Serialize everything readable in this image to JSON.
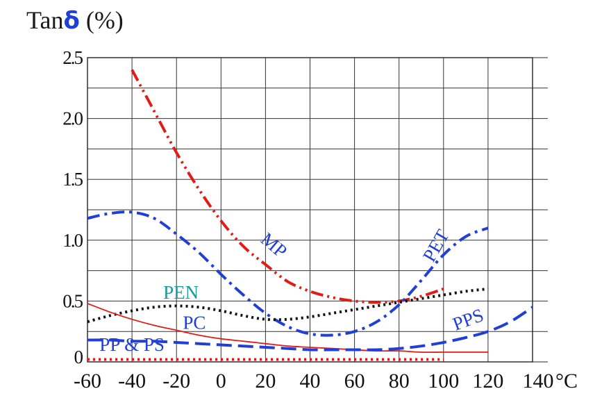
{
  "chart_data": {
    "type": "line",
    "title": {
      "prefix": "Tan",
      "symbol": "δ",
      "suffix": "(%)"
    },
    "xlabel": "°C",
    "ylabel": "",
    "xlim": [
      -60,
      140
    ],
    "ylim": [
      0,
      2.5
    ],
    "x_ticks": [
      -60,
      -40,
      -20,
      0,
      20,
      40,
      60,
      80,
      100,
      120,
      140
    ],
    "x_tick_labels": [
      "-60",
      "-40",
      "-20",
      "0",
      "20",
      "40",
      "60",
      "80",
      "100",
      "120",
      "140"
    ],
    "y_ticks": [
      0,
      0.5,
      1.0,
      1.5,
      2.0,
      2.5
    ],
    "y_tick_labels": [
      "0",
      "0.5",
      "1.0",
      "1.5",
      "2.0",
      "2.5"
    ],
    "grid": true,
    "series": [
      {
        "name": "MP",
        "color": "#e21b14",
        "style": "dash-dot-dot",
        "x": [
          -40,
          -30,
          -20,
          -10,
          0,
          10,
          20,
          30,
          40,
          50,
          60,
          70,
          80,
          90,
          100
        ],
        "y": [
          2.4,
          2.06,
          1.72,
          1.42,
          1.16,
          0.95,
          0.8,
          0.66,
          0.58,
          0.53,
          0.5,
          0.49,
          0.5,
          0.54,
          0.6
        ]
      },
      {
        "name": "PET",
        "color": "#1f3fd6",
        "style": "dash-dot",
        "x": [
          -60,
          -50,
          -40,
          -30,
          -20,
          -10,
          0,
          10,
          20,
          30,
          40,
          50,
          60,
          70,
          80,
          90,
          100,
          110,
          120
        ],
        "y": [
          1.18,
          1.22,
          1.23,
          1.18,
          1.05,
          0.9,
          0.72,
          0.55,
          0.4,
          0.29,
          0.23,
          0.22,
          0.25,
          0.33,
          0.47,
          0.67,
          0.88,
          1.03,
          1.1
        ]
      },
      {
        "name": "PEN",
        "color": "#111111",
        "style": "dotted",
        "x": [
          -60,
          -50,
          -40,
          -30,
          -20,
          -10,
          0,
          10,
          20,
          30,
          40,
          50,
          60,
          70,
          80,
          90,
          100,
          110,
          120
        ],
        "y": [
          0.33,
          0.38,
          0.42,
          0.45,
          0.46,
          0.45,
          0.42,
          0.38,
          0.35,
          0.35,
          0.37,
          0.4,
          0.43,
          0.46,
          0.49,
          0.52,
          0.55,
          0.58,
          0.6
        ]
      },
      {
        "name": "PC",
        "color": "#e21b14",
        "style": "solid",
        "x": [
          -60,
          -50,
          -40,
          -30,
          -20,
          -10,
          0,
          10,
          20,
          30,
          40,
          50,
          60,
          70,
          80,
          90,
          100,
          110,
          120
        ],
        "y": [
          0.48,
          0.41,
          0.35,
          0.3,
          0.26,
          0.22,
          0.19,
          0.17,
          0.15,
          0.13,
          0.12,
          0.11,
          0.1,
          0.09,
          0.09,
          0.08,
          0.08,
          0.08,
          0.08
        ]
      },
      {
        "name": "PPS",
        "color": "#1f3fd6",
        "style": "dashed",
        "x": [
          -60,
          -50,
          -40,
          -30,
          -20,
          -10,
          0,
          10,
          20,
          30,
          40,
          50,
          60,
          70,
          80,
          90,
          100,
          110,
          120,
          130,
          140
        ],
        "y": [
          0.18,
          0.18,
          0.17,
          0.17,
          0.16,
          0.15,
          0.14,
          0.13,
          0.12,
          0.11,
          0.1,
          0.1,
          0.1,
          0.1,
          0.11,
          0.13,
          0.16,
          0.2,
          0.25,
          0.33,
          0.45
        ]
      },
      {
        "name": "PP & PS",
        "color": "#e21b14",
        "style": "dotted",
        "x": [
          -60,
          -40,
          -20,
          0,
          20,
          40,
          60,
          80,
          100
        ],
        "y": [
          0.02,
          0.02,
          0.02,
          0.02,
          0.02,
          0.02,
          0.02,
          0.02,
          0.02
        ]
      }
    ],
    "annotations": [
      {
        "text": "MP",
        "color": "#1f3fd6",
        "x": 22,
        "y": 0.92,
        "rotate": 40
      },
      {
        "text": "PET",
        "color": "#1f3fd6",
        "x": 99,
        "y": 0.93,
        "rotate": -60
      },
      {
        "text": "PEN",
        "color": "#1a9a9a",
        "x": -18,
        "y": 0.52,
        "rotate": 0
      },
      {
        "text": "PC",
        "color": "#1f3fd6",
        "x": -12,
        "y": 0.27,
        "rotate": 0
      },
      {
        "text": "PPS",
        "color": "#1f3fd6",
        "x": 112,
        "y": 0.3,
        "rotate": -20
      },
      {
        "text": "PP & PS",
        "color": "#1f3fd6",
        "x": -40,
        "y": 0.09,
        "rotate": 0
      }
    ]
  }
}
